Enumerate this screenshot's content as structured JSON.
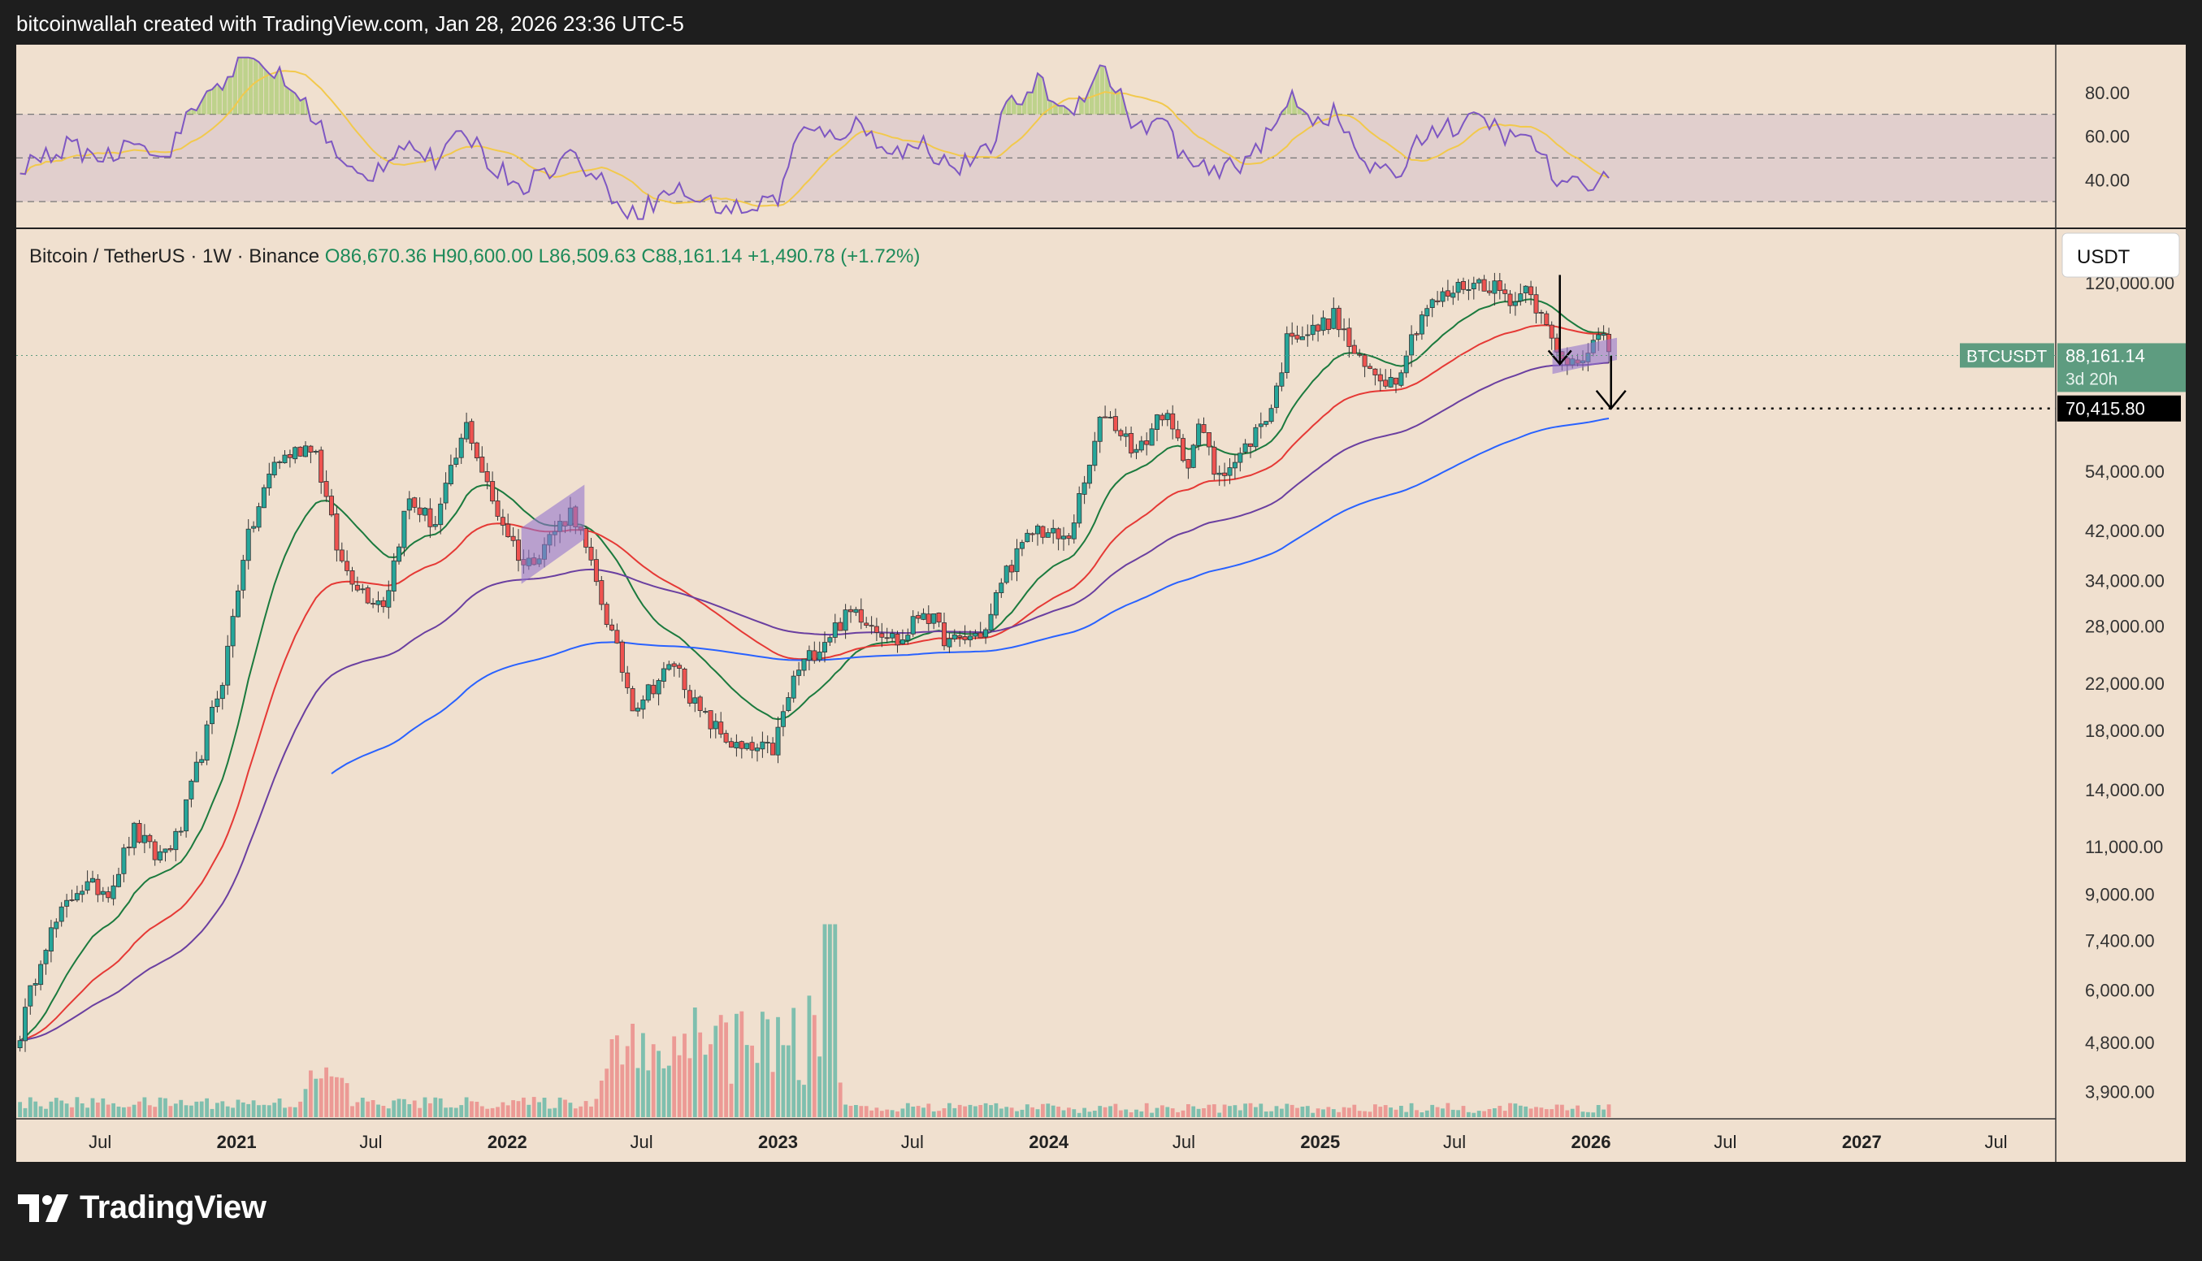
{
  "header": {
    "text": "bitcoinwallah created with TradingView.com, Jan 28, 2026 23:36 UTC-5"
  },
  "brand": {
    "name": "TradingView",
    "logo_icon": "tradingview-logo-icon"
  },
  "symbol_bar": {
    "title": "Bitcoin / TetherUS · 1W · Binance",
    "open": "O86,670.36",
    "high": "H90,600.00",
    "low": "L86,509.63",
    "close": "C88,161.14",
    "change": "+1,490.78 (+1.72%)"
  },
  "currency_button": "USDT",
  "price_label": {
    "symbol": "BTCUSDT",
    "value": "88,161.14",
    "countdown": "3d 20h"
  },
  "target_label": "70,415.80",
  "colors": {
    "background": "#f0e0cf",
    "up_candle": "#26a69a",
    "down_candle": "#ef5350",
    "ema_fast": "#1b7a3e",
    "ema_mid": "#e53935",
    "ema_slow": "#6a3fa0",
    "ema_longest": "#2962ff",
    "rsi_line": "#7e57c2",
    "rsi_ma": "#f2c94c",
    "pattern": "#9575cd",
    "price_badge": "#5e9c80"
  },
  "chart_data": {
    "type": "candlestick",
    "title": "Bitcoin / TetherUS · 1W · Binance",
    "y_scale": "log",
    "ylim": [
      3500,
      150000
    ],
    "y_ticks": [
      "120,000.00",
      "54,000.00",
      "42,000.00",
      "34,000.00",
      "28,000.00",
      "22,000.00",
      "18,000.00",
      "14,000.00",
      "11,000.00",
      "9,000.00",
      "7,400.00",
      "6,000.00",
      "4,800.00",
      "3,900.00"
    ],
    "x_ticks": [
      "Jul",
      "2021",
      "Jul",
      "2022",
      "Jul",
      "2023",
      "Jul",
      "2024",
      "Jul",
      "2025",
      "Jul",
      "2026",
      "Jul",
      "2027",
      "Jul"
    ],
    "anchors": [
      [
        "2020-03-15",
        5000
      ],
      [
        "2020-04-15",
        7200
      ],
      [
        "2020-06-01",
        9300
      ],
      [
        "2020-07-15",
        9200
      ],
      [
        "2020-08-15",
        11800
      ],
      [
        "2020-09-15",
        10500
      ],
      [
        "2020-10-15",
        11500
      ],
      [
        "2020-11-15",
        16500
      ],
      [
        "2020-12-15",
        23000
      ],
      [
        "2021-01-10",
        38000
      ],
      [
        "2021-02-20",
        56000
      ],
      [
        "2021-04-15",
        61000
      ],
      [
        "2021-05-20",
        37000
      ],
      [
        "2021-06-25",
        32000
      ],
      [
        "2021-07-20",
        31000
      ],
      [
        "2021-08-20",
        48000
      ],
      [
        "2021-09-25",
        43000
      ],
      [
        "2021-11-08",
        66000
      ],
      [
        "2021-12-10",
        48000
      ],
      [
        "2022-01-25",
        36000
      ],
      [
        "2022-03-30",
        46000
      ],
      [
        "2022-05-15",
        29000
      ],
      [
        "2022-06-20",
        20000
      ],
      [
        "2022-08-15",
        24000
      ],
      [
        "2022-09-15",
        19500
      ],
      [
        "2022-11-10",
        16500
      ],
      [
        "2022-12-25",
        16600
      ],
      [
        "2023-01-25",
        23000
      ],
      [
        "2023-03-20",
        28000
      ],
      [
        "2023-04-15",
        30000
      ],
      [
        "2023-06-15",
        26000
      ],
      [
        "2023-07-15",
        30200
      ],
      [
        "2023-08-20",
        26000
      ],
      [
        "2023-10-10",
        27500
      ],
      [
        "2023-10-30",
        34500
      ],
      [
        "2023-12-15",
        42500
      ],
      [
        "2024-01-25",
        40000
      ],
      [
        "2024-02-20",
        52000
      ],
      [
        "2024-03-15",
        70000
      ],
      [
        "2024-05-01",
        58000
      ],
      [
        "2024-06-01",
        70000
      ],
      [
        "2024-07-05",
        56000
      ],
      [
        "2024-07-25",
        66000
      ],
      [
        "2024-08-10",
        54000
      ],
      [
        "2024-09-10",
        56000
      ],
      [
        "2024-10-30",
        72000
      ],
      [
        "2024-11-20",
        98000
      ],
      [
        "2024-12-20",
        97000
      ],
      [
        "2025-01-20",
        104000
      ],
      [
        "2025-02-25",
        84000
      ],
      [
        "2025-04-10",
        79000
      ],
      [
        "2025-05-20",
        107000
      ],
      [
        "2025-07-14",
        119000
      ],
      [
        "2025-08-14",
        120000
      ],
      [
        "2025-09-25",
        110000
      ],
      [
        "2025-10-06",
        124000
      ],
      [
        "2025-10-20",
        108000
      ],
      [
        "2025-11-20",
        86000
      ],
      [
        "2025-12-15",
        88000
      ],
      [
        "2026-01-14",
        95000
      ],
      [
        "2026-01-28",
        88161
      ]
    ],
    "moving_averages": [
      {
        "name": "EMA fast",
        "color": "#1b7a3e"
      },
      {
        "name": "EMA mid",
        "color": "#e53935"
      },
      {
        "name": "EMA slow",
        "color": "#6a3fa0"
      },
      {
        "name": "EMA longest",
        "color": "#2962ff"
      }
    ],
    "rsi": {
      "ylim": [
        20,
        100
      ],
      "y_ticks": [
        "80.00",
        "60.00",
        "40.00"
      ],
      "levels": [
        70,
        50,
        30
      ],
      "anchors": [
        [
          "2020-03-15",
          45
        ],
        [
          "2020-05-15",
          55
        ],
        [
          "2020-07-15",
          50
        ],
        [
          "2020-08-20",
          62
        ],
        [
          "2020-09-20",
          48
        ],
        [
          "2020-11-10",
          75
        ],
        [
          "2020-12-20",
          88
        ],
        [
          "2021-01-10",
          95
        ],
        [
          "2021-02-20",
          90
        ],
        [
          "2021-04-15",
          70
        ],
        [
          "2021-05-25",
          45
        ],
        [
          "2021-06-25",
          40
        ],
        [
          "2021-08-15",
          58
        ],
        [
          "2021-09-25",
          48
        ],
        [
          "2021-11-08",
          62
        ],
        [
          "2021-12-15",
          45
        ],
        [
          "2022-01-25",
          38
        ],
        [
          "2022-03-30",
          52
        ],
        [
          "2022-05-15",
          36
        ],
        [
          "2022-06-20",
          24
        ],
        [
          "2022-08-15",
          36
        ],
        [
          "2022-09-20",
          30
        ],
        [
          "2022-11-15",
          26
        ],
        [
          "2023-01-01",
          32
        ],
        [
          "2023-01-30",
          62
        ],
        [
          "2023-03-15",
          60
        ],
        [
          "2023-04-15",
          65
        ],
        [
          "2023-06-15",
          52
        ],
        [
          "2023-07-15",
          57
        ],
        [
          "2023-08-25",
          45
        ],
        [
          "2023-10-10",
          52
        ],
        [
          "2023-11-05",
          72
        ],
        [
          "2023-12-20",
          85
        ],
        [
          "2024-01-25",
          70
        ],
        [
          "2024-03-15",
          92
        ],
        [
          "2024-05-01",
          62
        ],
        [
          "2024-06-01",
          68
        ],
        [
          "2024-07-05",
          48
        ],
        [
          "2024-08-10",
          42
        ],
        [
          "2024-09-15",
          48
        ],
        [
          "2024-10-30",
          62
        ],
        [
          "2024-11-25",
          80
        ],
        [
          "2024-12-20",
          68
        ],
        [
          "2025-01-20",
          70
        ],
        [
          "2025-02-28",
          48
        ],
        [
          "2025-04-10",
          40
        ],
        [
          "2025-05-20",
          62
        ],
        [
          "2025-07-14",
          65
        ],
        [
          "2025-08-10",
          68
        ],
        [
          "2025-09-25",
          56
        ],
        [
          "2025-10-06",
          62
        ],
        [
          "2025-10-20",
          55
        ],
        [
          "2025-11-20",
          36
        ],
        [
          "2025-12-20",
          38
        ],
        [
          "2026-01-14",
          42
        ],
        [
          "2026-01-28",
          40
        ]
      ]
    }
  }
}
